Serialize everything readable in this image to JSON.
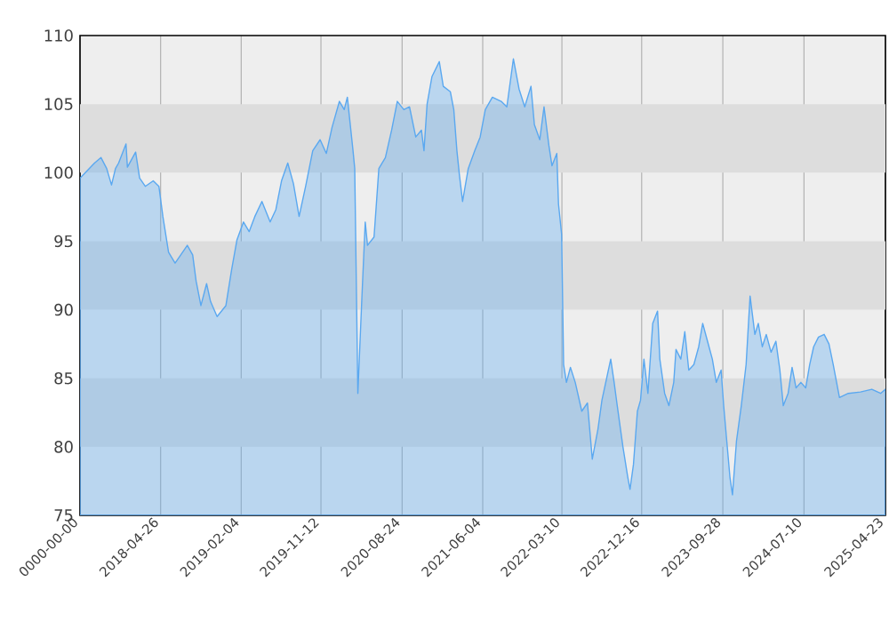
{
  "chart_data": {
    "type": "area",
    "grid": "x",
    "xlim": [
      "2017-07-16",
      "2025-04-23"
    ],
    "ylim": [
      75,
      110
    ],
    "xticks": [
      {
        "value": "2017-07-16",
        "label": "0000-00-00"
      },
      "2018-04-26",
      "2019-02-04",
      "2019-11-12",
      "2020-08-24",
      "2021-06-04",
      "2022-03-10",
      "2022-12-16",
      "2023-09-28",
      "2024-07-10",
      "2025-04-23"
    ],
    "yticks": [
      75,
      80,
      85,
      90,
      95,
      100,
      105,
      110
    ],
    "bands": [
      {
        "axis": "y",
        "from": 80,
        "to": 85,
        "color": "#dddddd"
      },
      {
        "axis": "y",
        "from": 90,
        "to": 95,
        "color": "#dddddd"
      },
      {
        "axis": "y",
        "from": 100,
        "to": 105,
        "color": "#dddddd"
      }
    ],
    "series": [
      {
        "color": "#5aa8f0",
        "x": [
          "2017-07-16",
          "2017-09-05",
          "2017-09-28",
          "2017-10-18",
          "2017-11-04",
          "2017-11-18",
          "2017-11-29",
          "2017-12-25",
          "2017-12-30",
          "2018-01-28",
          "2018-02-11",
          "2018-03-03",
          "2018-03-31",
          "2018-04-20",
          "2018-05-04",
          "2018-05-24",
          "2018-06-16",
          "2018-07-06",
          "2018-07-29",
          "2018-08-17",
          "2018-08-29",
          "2018-09-15",
          "2018-10-05",
          "2018-10-19",
          "2018-11-11",
          "2018-12-12",
          "2019-01-01",
          "2019-01-20",
          "2019-02-12",
          "2019-03-04",
          "2019-03-24",
          "2019-04-18",
          "2019-05-17",
          "2019-06-06",
          "2019-06-26",
          "2019-07-18",
          "2019-08-07",
          "2019-08-27",
          "2019-09-19",
          "2019-10-14",
          "2019-11-09",
          "2019-12-01",
          "2019-12-21",
          "2020-01-16",
          "2020-02-02",
          "2020-02-13",
          "2020-03-04",
          "2020-03-10",
          "2020-03-21",
          "2020-04-04",
          "2020-04-16",
          "2020-04-24",
          "2020-05-17",
          "2020-06-03",
          "2020-06-26",
          "2020-07-18",
          "2020-08-07",
          "2020-08-30",
          "2020-09-19",
          "2020-10-11",
          "2020-10-31",
          "2020-11-09",
          "2020-11-20",
          "2020-12-07",
          "2021-01-02",
          "2021-01-16",
          "2021-02-10",
          "2021-02-22",
          "2021-03-05",
          "2021-03-14",
          "2021-03-25",
          "2021-04-14",
          "2021-05-07",
          "2021-05-26",
          "2021-06-13",
          "2021-07-08",
          "2021-08-08",
          "2021-08-28",
          "2021-09-20",
          "2021-10-10",
          "2021-10-30",
          "2021-11-21",
          "2021-12-03",
          "2021-12-22",
          "2022-01-06",
          "2022-01-23",
          "2022-02-03",
          "2022-02-20",
          "2022-02-26",
          "2022-03-09",
          "2022-03-16",
          "2022-03-26",
          "2022-04-09",
          "2022-04-26",
          "2022-05-19",
          "2022-06-08",
          "2022-06-25",
          "2022-07-15",
          "2022-07-29",
          "2022-08-29",
          "2022-09-10",
          "2022-09-21",
          "2022-10-11",
          "2022-10-28",
          "2022-11-05",
          "2022-11-17",
          "2022-12-01",
          "2022-12-12",
          "2022-12-24",
          "2023-01-07",
          "2023-01-24",
          "2023-02-10",
          "2023-02-18",
          "2023-03-07",
          "2023-03-22",
          "2023-04-08",
          "2023-04-16",
          "2023-05-03",
          "2023-05-17",
          "2023-05-31",
          "2023-06-18",
          "2023-07-05",
          "2023-07-19",
          "2023-08-05",
          "2023-08-22",
          "2023-09-05",
          "2023-09-22",
          "2023-10-01",
          "2023-10-12",
          "2023-10-23",
          "2023-11-01",
          "2023-11-15",
          "2023-12-02",
          "2023-12-19",
          "2024-01-02",
          "2024-01-19",
          "2024-01-31",
          "2024-02-14",
          "2024-02-28",
          "2024-03-16",
          "2024-04-02",
          "2024-04-16",
          "2024-04-28",
          "2024-05-15",
          "2024-05-29",
          "2024-06-12",
          "2024-06-29",
          "2024-07-16",
          "2024-07-30",
          "2024-08-13",
          "2024-08-30",
          "2024-09-19",
          "2024-10-06",
          "2024-10-21",
          "2024-11-12",
          "2024-12-13",
          "2025-01-25",
          "2025-03-06",
          "2025-04-06",
          "2025-04-23"
        ],
        "values": [
          99.6,
          100.7,
          101.1,
          100.3,
          99.1,
          100.3,
          100.7,
          102.1,
          100.4,
          101.5,
          99.6,
          99.0,
          99.4,
          99.0,
          96.8,
          94.2,
          93.4,
          94.0,
          94.7,
          94.0,
          92.1,
          90.3,
          91.9,
          90.6,
          89.5,
          90.3,
          92.9,
          95.1,
          96.4,
          95.7,
          96.8,
          97.9,
          96.4,
          97.3,
          99.4,
          100.7,
          99.2,
          96.8,
          99.0,
          101.6,
          102.4,
          101.4,
          103.3,
          105.2,
          104.6,
          105.5,
          101.6,
          100.3,
          83.9,
          90.8,
          96.4,
          94.7,
          95.3,
          100.3,
          101.1,
          103.1,
          105.2,
          104.6,
          104.8,
          102.6,
          103.1,
          101.6,
          105.0,
          107.0,
          108.1,
          106.3,
          105.9,
          104.6,
          101.6,
          99.8,
          97.9,
          100.3,
          101.6,
          102.6,
          104.6,
          105.5,
          105.2,
          104.8,
          108.3,
          106.1,
          104.8,
          106.3,
          103.5,
          102.4,
          104.8,
          102.0,
          100.5,
          101.4,
          97.7,
          95.5,
          86.0,
          84.7,
          85.8,
          84.7,
          82.6,
          83.2,
          79.1,
          81.3,
          83.4,
          86.4,
          84.7,
          83.0,
          80.0,
          77.8,
          76.9,
          78.7,
          82.6,
          83.4,
          86.4,
          83.9,
          89.0,
          89.9,
          86.4,
          83.9,
          83.0,
          84.7,
          87.1,
          86.4,
          88.4,
          85.6,
          86.0,
          87.3,
          89.0,
          87.7,
          86.4,
          84.7,
          85.6,
          83.0,
          80.4,
          77.8,
          76.5,
          80.4,
          83.0,
          86.0,
          91.0,
          88.2,
          89.0,
          87.3,
          88.2,
          86.9,
          87.7,
          85.6,
          83.0,
          83.9,
          85.8,
          84.3,
          84.7,
          84.3,
          86.0,
          87.3,
          88.0,
          88.2,
          87.5,
          86.0,
          83.6,
          83.9,
          84.0,
          84.2,
          83.9,
          84.2
        ]
      }
    ]
  }
}
